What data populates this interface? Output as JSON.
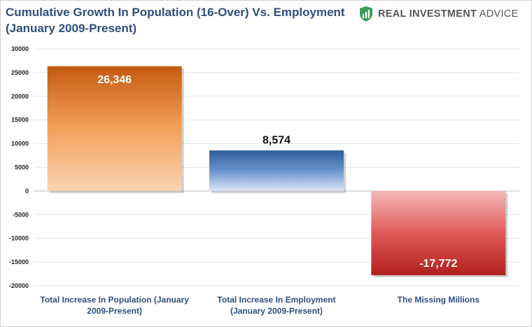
{
  "title_lines": [
    "Cumulative Growth In Population (16-Over) Vs. Employment",
    "(January 2009-Present)"
  ],
  "brand": {
    "name_bold": "REAL INVESTMENT",
    "name_rest": "ADVICE",
    "logo_icon": "shield-icon",
    "logo_color": "#3a9d5d"
  },
  "chart_data": {
    "type": "bar",
    "title": "Cumulative Growth In Population (16-Over) Vs. Employment (January 2009-Present)",
    "categories": [
      [
        "Total Increase In Population (January",
        "2009-Present)"
      ],
      [
        "Total Increase In Employment",
        "(January 2009-Present)"
      ],
      [
        "The Missing Millions"
      ]
    ],
    "values": [
      26346,
      8574,
      -17772
    ],
    "value_labels": [
      "26,346",
      "8,574",
      "-17,772"
    ],
    "bar_colors": [
      {
        "top": "#c55a11",
        "mid": "#f4a05a",
        "bottom": "#fbd5b5"
      },
      {
        "top": "#2e5e9c",
        "mid": "#6b93cc",
        "bottom": "#dbe7f6"
      },
      {
        "top": "#f4b8b8",
        "mid": "#e15a5a",
        "bottom": "#b0201c"
      }
    ],
    "label_colors": [
      "#ffffff",
      "#111111",
      "#ffffff"
    ],
    "ylim": [
      -20000,
      30000
    ],
    "yticks": [
      30000,
      25000,
      20000,
      15000,
      10000,
      5000,
      0,
      -5000,
      -10000,
      -15000,
      -20000
    ],
    "grid": true,
    "xlabel": "",
    "ylabel": ""
  }
}
